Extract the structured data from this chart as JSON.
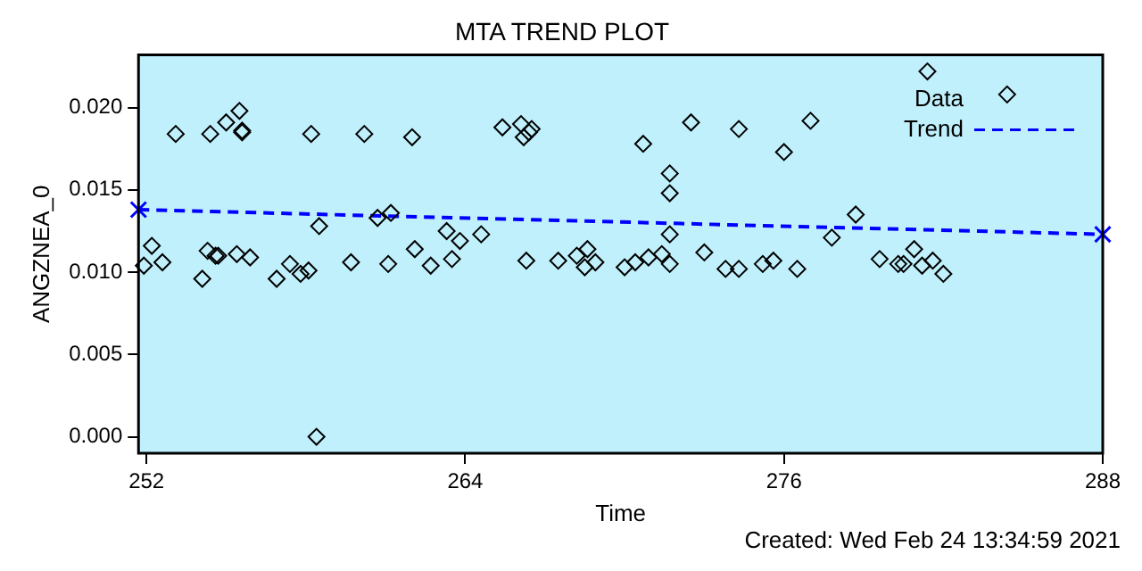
{
  "chart_data": {
    "type": "scatter",
    "title": "MTA TREND PLOT",
    "xlabel": "Time",
    "ylabel": "ANGZNEA_0",
    "annotations": [
      "Created: Wed Feb 24 13:34:59 2021"
    ],
    "xlim": [
      251.7,
      288
    ],
    "xticks": [
      252,
      264,
      276,
      288
    ],
    "ylim": [
      -0.001,
      0.0232
    ],
    "yticks": [
      {
        "value": 0,
        "label": "0.000"
      },
      {
        "value": 0.005,
        "label": "0.005"
      },
      {
        "value": 0.01,
        "label": "0.010"
      },
      {
        "value": 0.015,
        "label": "0.015"
      },
      {
        "value": 0.02,
        "label": "0.020"
      }
    ],
    "grid": false,
    "legend": "top right",
    "series": [
      {
        "name": "Data",
        "marker": "diamond",
        "color": "#000000",
        "x": [
          251.9,
          252.2,
          252.6,
          253.1,
          254.1,
          254.3,
          254.4,
          254.6,
          254.7,
          255.0,
          255.4,
          255.5,
          255.6,
          255.6,
          255.9,
          256.9,
          257.4,
          257.8,
          258.1,
          258.2,
          258.4,
          258.5,
          259.7,
          260.2,
          260.7,
          261.1,
          261.2,
          262.0,
          262.1,
          262.7,
          263.3,
          263.5,
          263.8,
          264.6,
          265.4,
          266.1,
          266.2,
          266.4,
          266.5,
          266.3,
          267.5,
          268.2,
          268.5,
          268.6,
          268.9,
          270.0,
          270.4,
          270.7,
          270.9,
          271.4,
          271.7,
          271.7,
          271.7,
          271.7,
          272.5,
          273.0,
          273.8,
          274.3,
          274.3,
          275.2,
          275.6,
          276.0,
          276.5,
          277.0,
          277.8,
          278.7,
          279.6,
          280.3,
          280.5,
          280.9,
          281.2,
          281.6,
          282.0,
          281.4,
          284.4
        ],
        "values": [
          0.0104,
          0.0116,
          0.0106,
          0.0184,
          0.0096,
          0.0113,
          0.0184,
          0.011,
          0.011,
          0.0191,
          0.0111,
          0.0198,
          0.0185,
          0.0186,
          0.0109,
          0.0096,
          0.0105,
          0.0099,
          0.0101,
          0.0184,
          0.0,
          0.0128,
          0.0106,
          0.0184,
          0.0133,
          0.0105,
          0.0136,
          0.0182,
          0.0114,
          0.0104,
          0.0125,
          0.0108,
          0.0119,
          0.0123,
          0.0188,
          0.019,
          0.0182,
          0.0185,
          0.0187,
          0.0107,
          0.0107,
          0.011,
          0.0103,
          0.0114,
          0.0106,
          0.0103,
          0.0106,
          0.0178,
          0.0109,
          0.0111,
          0.0105,
          0.0123,
          0.0148,
          0.016,
          0.0191,
          0.0112,
          0.0102,
          0.0102,
          0.0187,
          0.0105,
          0.0107,
          0.0173,
          0.0102,
          0.0192,
          0.0121,
          0.0135,
          0.0108,
          0.0105,
          0.0105,
          0.0114,
          0.0104,
          0.0107,
          0.0099,
          0.0222,
          0.0208
        ]
      },
      {
        "name": "Trend",
        "type": "line",
        "marker": "cross",
        "line_style": "dashed",
        "color": "#0000ff",
        "x": [
          251.7,
          288
        ],
        "values": [
          0.0138,
          0.0123
        ]
      }
    ]
  }
}
